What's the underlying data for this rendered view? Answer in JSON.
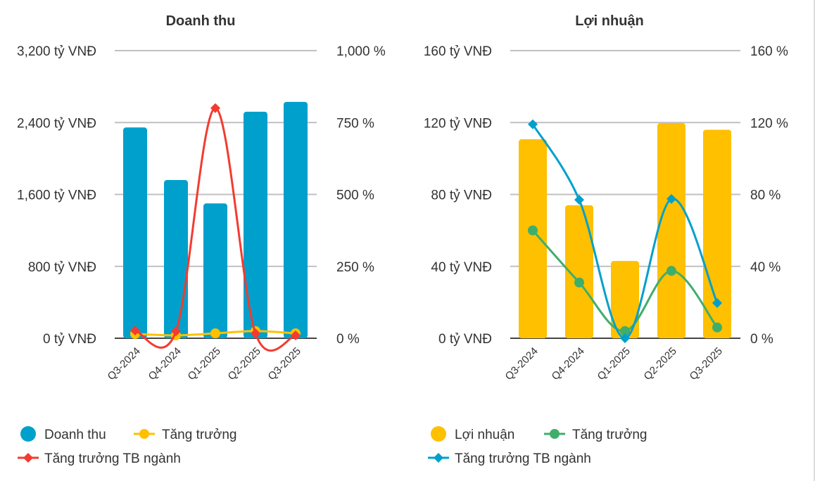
{
  "chart_data": [
    {
      "type": "bar",
      "title": "Doanh thu",
      "categories": [
        "Q3-2024",
        "Q4-2024",
        "Q1-2025",
        "Q2-2025",
        "Q3-2025"
      ],
      "left_axis": {
        "ticks": [
          "0 tỷ VNĐ",
          "800 tỷ VNĐ",
          "1,600 tỷ VNĐ",
          "2,400 tỷ VNĐ",
          "3,200 tỷ VNĐ"
        ],
        "range": [
          0,
          3200
        ]
      },
      "right_axis": {
        "ticks": [
          "0 %",
          "250 %",
          "500 %",
          "750 %",
          "1,000 %"
        ],
        "range": [
          0,
          1000
        ]
      },
      "bar_series": {
        "name": "Doanh thu",
        "values": [
          2345,
          1760,
          1500,
          2520,
          2630
        ],
        "color": "#00a0cc"
      },
      "line_series": [
        {
          "name": "Tăng trưởng",
          "values": [
            15,
            10,
            17,
            25,
            17
          ],
          "color": "#ffc000",
          "marker": "circle"
        },
        {
          "name": "Tăng trưởng TB ngành",
          "values": [
            27,
            24,
            800,
            17,
            10
          ],
          "color": "#f33b2f",
          "marker": "diamond"
        }
      ],
      "legend": "bottom"
    },
    {
      "type": "bar",
      "title": "Lợi nhuận",
      "categories": [
        "Q3-2024",
        "Q4-2024",
        "Q1-2025",
        "Q2-2025",
        "Q3-2025"
      ],
      "left_axis": {
        "ticks": [
          "0 tỷ VNĐ",
          "40 tỷ VNĐ",
          "80 tỷ VNĐ",
          "120 tỷ VNĐ",
          "160 tỷ VNĐ"
        ],
        "range": [
          0,
          160
        ]
      },
      "right_axis": {
        "ticks": [
          "0 %",
          "40 %",
          "80 %",
          "120 %",
          "160 %"
        ],
        "range": [
          0,
          160
        ]
      },
      "bar_series": {
        "name": "Lợi nhuận",
        "values": [
          110.7,
          74,
          43,
          119.7,
          116
        ],
        "color": "#ffc000"
      },
      "line_series": [
        {
          "name": "Tăng trưởng",
          "values": [
            60,
            31,
            4,
            37.5,
            6
          ],
          "color": "#3fae6a",
          "marker": "circle"
        },
        {
          "name": "Tăng trưởng TB ngành",
          "values": [
            119,
            77,
            0,
            77.5,
            19.6
          ],
          "color": "#00a0cc",
          "marker": "diamond"
        }
      ],
      "legend": "bottom"
    }
  ]
}
